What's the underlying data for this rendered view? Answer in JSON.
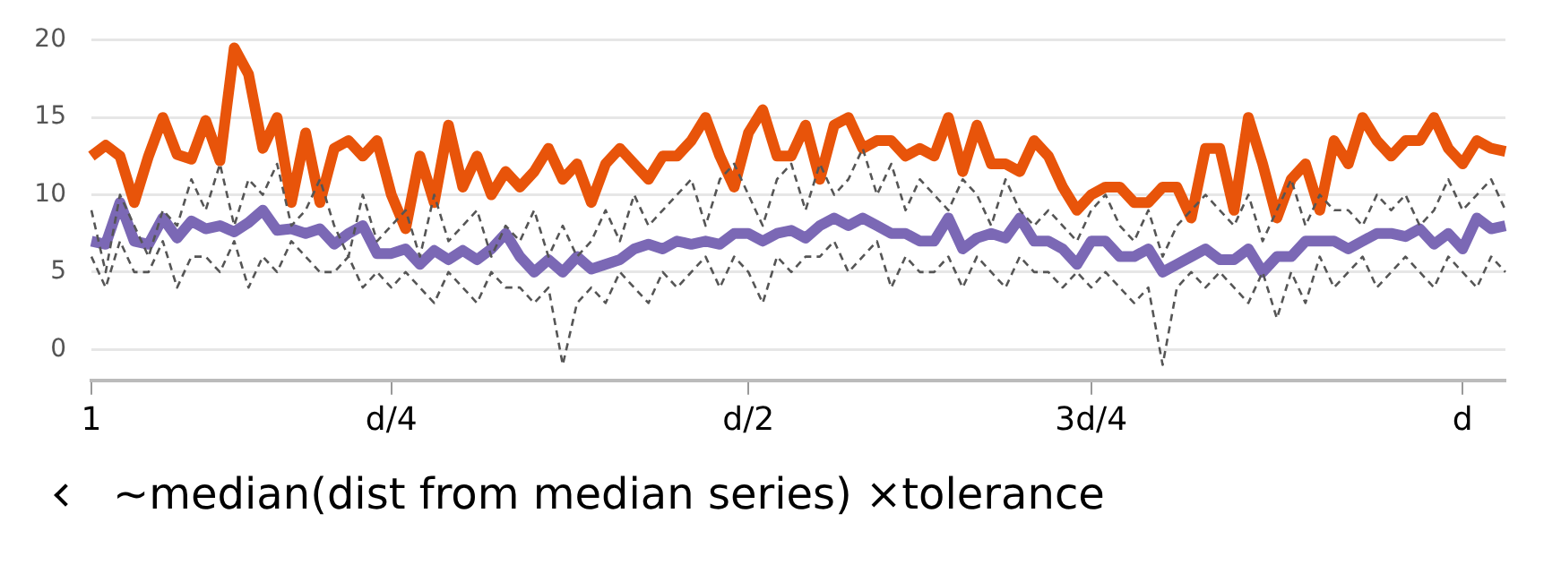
{
  "chart_data": {
    "type": "line",
    "categories": [
      "1",
      null,
      null,
      null,
      null,
      null,
      null,
      null,
      null,
      null,
      null,
      null,
      null,
      null,
      null,
      null,
      null,
      null,
      null,
      null,
      null,
      "d/4",
      null,
      null,
      null,
      null,
      null,
      null,
      null,
      null,
      null,
      null,
      null,
      null,
      null,
      null,
      null,
      null,
      null,
      null,
      null,
      null,
      null,
      null,
      null,
      null,
      "d/2",
      null,
      null,
      null,
      null,
      null,
      null,
      null,
      null,
      null,
      null,
      null,
      null,
      null,
      null,
      null,
      null,
      null,
      null,
      null,
      null,
      null,
      null,
      null,
      "3d/4",
      null,
      null,
      null,
      null,
      null,
      null,
      null,
      null,
      null,
      null,
      null,
      null,
      null,
      null,
      null,
      null,
      null,
      null,
      null,
      null,
      null,
      null,
      null,
      null,
      null,
      "d",
      null,
      null,
      null
    ],
    "series": [
      {
        "color": "#555555",
        "line_style": "dashed",
        "values": [
          9,
          5,
          10,
          8,
          6,
          9,
          8,
          11,
          9,
          12,
          8,
          11,
          10,
          12,
          8,
          9,
          11,
          8,
          6,
          10,
          7,
          8,
          9,
          6,
          10,
          7,
          8,
          9,
          6,
          8,
          7,
          9,
          6,
          8,
          6,
          7,
          9,
          7,
          10,
          8,
          9,
          10,
          11,
          8,
          11,
          12,
          10,
          8,
          11,
          12,
          9,
          12,
          10,
          11,
          13,
          10,
          12,
          9,
          11,
          10,
          9,
          11,
          10,
          8,
          11,
          9,
          8,
          9,
          8,
          7,
          9,
          10,
          8,
          7,
          9,
          6,
          8,
          9,
          10,
          9,
          8,
          10,
          7,
          9,
          11,
          8,
          10,
          9,
          9,
          8,
          10,
          9,
          10,
          8,
          9,
          11,
          9,
          10,
          11,
          9
        ]
      },
      {
        "color": "#555555",
        "line_style": "dashed",
        "values": [
          6,
          4,
          7,
          5,
          5,
          7,
          4,
          6,
          6,
          5,
          7,
          4,
          6,
          5,
          7,
          6,
          5,
          5,
          6,
          4,
          5,
          4,
          5,
          4,
          3,
          5,
          4,
          3,
          5,
          4,
          4,
          3,
          4,
          -1,
          3,
          4,
          3,
          5,
          4,
          3,
          5,
          4,
          5,
          6,
          4,
          6,
          5,
          3,
          6,
          5,
          6,
          6,
          7,
          5,
          6,
          7,
          4,
          6,
          5,
          5,
          6,
          4,
          6,
          5,
          4,
          6,
          5,
          5,
          4,
          5,
          4,
          5,
          4,
          3,
          4,
          -1,
          4,
          5,
          4,
          5,
          4,
          3,
          5,
          2,
          5,
          3,
          6,
          4,
          5,
          6,
          4,
          5,
          6,
          5,
          4,
          6,
          5,
          4,
          6,
          5
        ]
      },
      {
        "color": "#e8540a",
        "line_style": "solid",
        "values": [
          12.5,
          13.2,
          12.5,
          9.5,
          12.5,
          15,
          12.6,
          12.3,
          14.8,
          12.2,
          19.5,
          17.8,
          13,
          15,
          9.5,
          14,
          9.5,
          13,
          13.5,
          12.5,
          13.5,
          10,
          7.8,
          12.5,
          9.5,
          14.5,
          10.5,
          12.5,
          10,
          11.5,
          10.5,
          11.5,
          13,
          11,
          12,
          9.5,
          12,
          13,
          12,
          11,
          12.5,
          12.5,
          13.5,
          15,
          12.5,
          10.5,
          14,
          15.5,
          12.5,
          12.5,
          14.5,
          11,
          14.5,
          15,
          13,
          13.5,
          13.5,
          12.5,
          13,
          12.5,
          15,
          11.5,
          14.5,
          12,
          12,
          11.5,
          13.5,
          12.5,
          10.5,
          9,
          10,
          10.5,
          10.5,
          9.5,
          9.5,
          10.5,
          10.5,
          8.5,
          13,
          13,
          9,
          15,
          12,
          8.5,
          11,
          12,
          9,
          13.5,
          12,
          15,
          13.5,
          12.5,
          13.5,
          13.5,
          15,
          13,
          12,
          13.5,
          13,
          12.8
        ]
      },
      {
        "color": "#7b68b5",
        "line_style": "solid",
        "values": [
          7,
          6.8,
          9.5,
          7,
          6.8,
          8.5,
          7.2,
          8.3,
          7.8,
          8,
          7.6,
          8.2,
          9,
          7.7,
          7.8,
          7.5,
          7.8,
          6.8,
          7.5,
          8,
          6.2,
          6.2,
          6.5,
          5.5,
          6.4,
          5.8,
          6.4,
          5.8,
          6.5,
          7.5,
          6,
          5,
          5.8,
          5,
          6,
          5.2,
          5.5,
          5.8,
          6.5,
          6.8,
          6.5,
          7,
          6.8,
          7,
          6.8,
          7.5,
          7.5,
          7,
          7.5,
          7.7,
          7.2,
          8,
          8.5,
          8,
          8.5,
          8,
          7.5,
          7.5,
          7,
          7,
          8.5,
          6.5,
          7.2,
          7.5,
          7.2,
          8.5,
          7,
          7,
          6.5,
          5.5,
          7,
          7,
          6,
          6,
          6.5,
          5,
          5.5,
          6,
          6.5,
          5.8,
          5.8,
          6.5,
          5,
          6,
          6,
          7,
          7,
          7,
          6.5,
          7,
          7.5,
          7.5,
          7.3,
          7.8,
          6.8,
          7.5,
          6.5,
          8.5,
          7.8,
          8
        ]
      }
    ],
    "ylim": [
      -2,
      20
    ],
    "yticks": [
      0,
      5,
      10,
      15,
      20
    ],
    "grid": "y",
    "legend": false,
    "marker": "none",
    "annotations": [
      "~median(dist from median series) ×tolerance"
    ]
  }
}
